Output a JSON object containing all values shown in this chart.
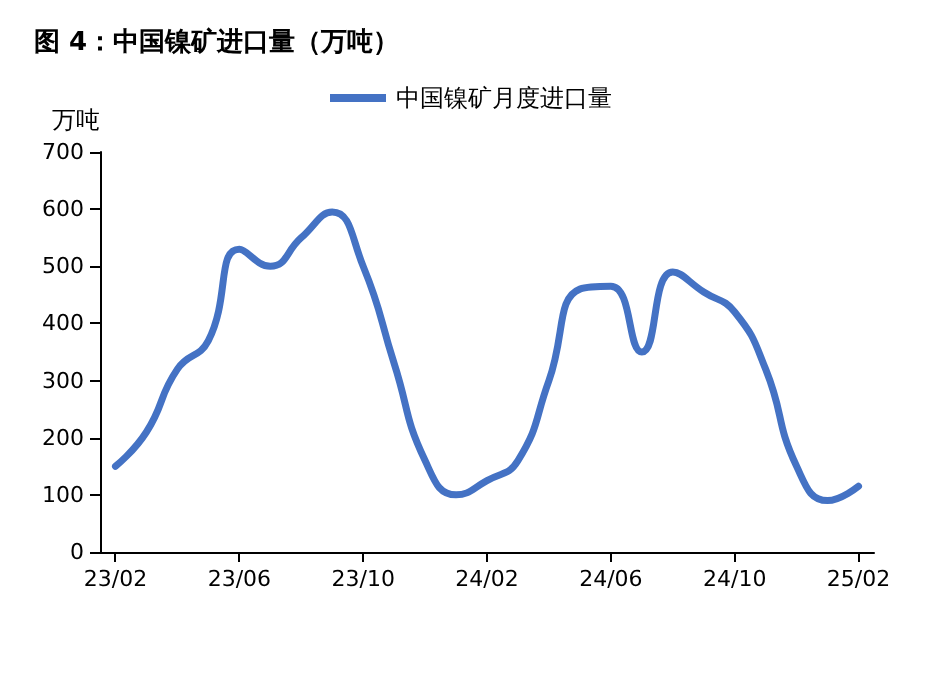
{
  "chart_data": {
    "type": "line",
    "title": "图 4：中国镍矿进口量（万吨）",
    "ylabel": "万吨",
    "categories": [
      "23/02",
      null,
      null,
      null,
      "23/06",
      null,
      null,
      null,
      "23/10",
      null,
      null,
      null,
      "24/02",
      null,
      null,
      null,
      "24/06",
      null,
      null,
      null,
      "24/10",
      null,
      null,
      null,
      "25/02"
    ],
    "series": [
      {
        "name": "中国镍矿月度进口量",
        "color": "#4472c4",
        "values": [
          150,
          210,
          320,
          370,
          530,
          500,
          550,
          595,
          500,
          330,
          160,
          100,
          125,
          160,
          300,
          460,
          465,
          350,
          490,
          455,
          420,
          320,
          150,
          90,
          115
        ]
      }
    ],
    "ylim": [
      0,
      700
    ],
    "yticks": [
      0,
      100,
      200,
      300,
      400,
      500,
      600,
      700
    ],
    "grid": false,
    "legend": "top",
    "marker": "none",
    "line_style": "solid"
  }
}
